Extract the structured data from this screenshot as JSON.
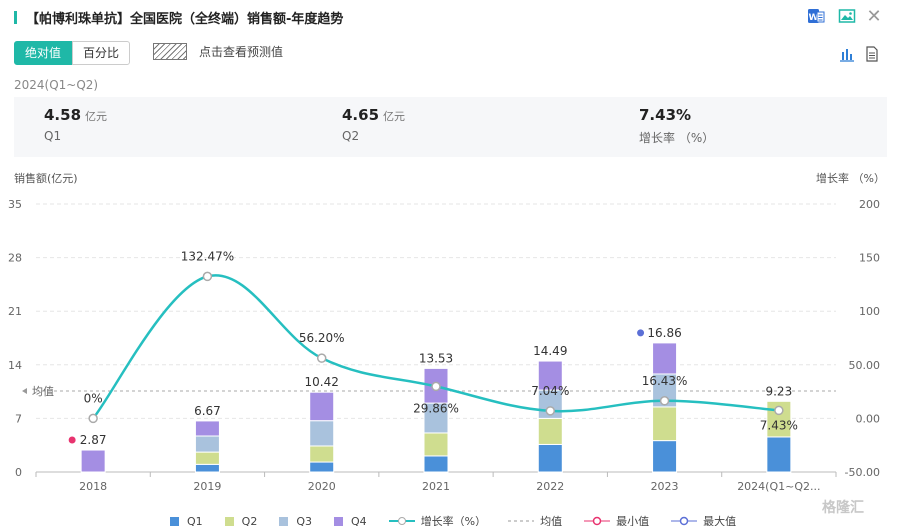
{
  "header": {
    "title": "【帕博利珠单抗】全国医院（全终端）销售额-年度趋势",
    "export_word_icon": "word-export-icon",
    "export_image_icon": "image-export-icon",
    "close_icon": "close-icon"
  },
  "toolbar": {
    "absolute_label": "绝对值",
    "percent_label": "百分比",
    "forecast_label": "点击查看预测值",
    "bar_chart_icon": "bar-chart-icon",
    "table_icon": "document-icon"
  },
  "summary": {
    "period": "2024(Q1~Q2)",
    "items": [
      {
        "value": "4.58",
        "unit": "亿元",
        "label": "Q1"
      },
      {
        "value": "4.65",
        "unit": "亿元",
        "label": "Q2"
      },
      {
        "value": "7.43%",
        "unit": "",
        "label": "增长率 （%）"
      }
    ]
  },
  "chart_data": {
    "type": "bar",
    "stacked": true,
    "categories": [
      "2018",
      "2019",
      "2020",
      "2021",
      "2022",
      "2023",
      "2024(Q1~Q2..."
    ],
    "series": [
      {
        "name": "Q1",
        "color": "#4a90d9",
        "values": [
          0,
          1.0,
          1.3,
          2.1,
          3.6,
          4.1,
          4.58
        ]
      },
      {
        "name": "Q2",
        "color": "#cfdd8f",
        "values": [
          0,
          1.6,
          2.1,
          3.0,
          3.4,
          4.4,
          4.65
        ]
      },
      {
        "name": "Q3",
        "color": "#a9c2dd",
        "values": [
          0,
          2.1,
          3.3,
          3.9,
          3.7,
          4.3,
          0
        ]
      },
      {
        "name": "Q4",
        "color": "#a48ee3",
        "values": [
          2.87,
          1.97,
          3.72,
          4.53,
          3.79,
          4.06,
          0
        ]
      }
    ],
    "totals": [
      "2.87",
      "6.67",
      "10.42",
      "13.53",
      "14.49",
      "16.86",
      "9.23"
    ],
    "growth_series": {
      "name": "增长率（%）",
      "color": "#26bfc0",
      "values": [
        0,
        132.47,
        56.2,
        29.86,
        7.04,
        16.43,
        7.43
      ],
      "labels": [
        "0%",
        "132.47%",
        "56.20%",
        "29.86%",
        "7.04%",
        "16.43%",
        "7.43%"
      ]
    },
    "ylabel": "销售额(亿元)",
    "ylabel_right": "增长率 （%）",
    "ylim": [
      0,
      35
    ],
    "yticks": [
      "0",
      "7",
      "14",
      "21",
      "28",
      "35"
    ],
    "ylim_right": [
      -50,
      200
    ],
    "yticks_right": [
      "-50.00",
      "0.00",
      "50.00",
      "100",
      "150",
      "200"
    ],
    "mean_label": "均值",
    "min_marker_color": "#e8336f",
    "max_marker_color": "#5b6fd6",
    "legend": [
      "Q1",
      "Q2",
      "Q3",
      "Q4",
      "增长率（%）",
      "均值",
      "最小值",
      "最大值"
    ],
    "legend_position": "bottom",
    "grid": true
  },
  "watermark": "格隆汇"
}
